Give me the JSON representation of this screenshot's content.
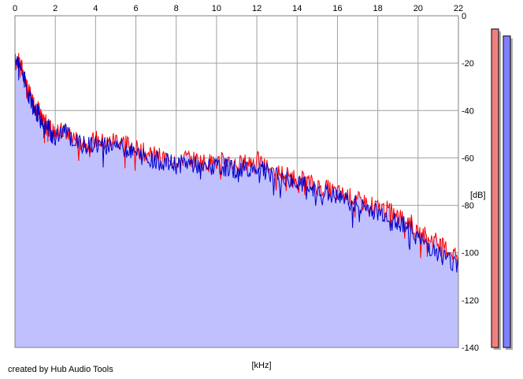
{
  "credit": "created by Hub Audio Tools",
  "chart_data": {
    "type": "line",
    "xlabel": "[kHz]",
    "ylabel": "[dB]",
    "xlim": [
      0,
      22
    ],
    "ylim": [
      -140,
      0
    ],
    "x_ticks": [
      0,
      2,
      4,
      6,
      8,
      10,
      12,
      14,
      16,
      18,
      20,
      22
    ],
    "y_ticks": [
      0,
      -20,
      -40,
      -60,
      -80,
      -100,
      -120,
      -140
    ],
    "grid": true,
    "colors": {
      "left_channel": "#ff0000",
      "right_channel": "#0000cc",
      "fill": "#c0c0ff",
      "grid": "#a0a0a0",
      "level_left": "#f08080",
      "level_right": "#8080ff"
    },
    "series": [
      {
        "x": [
          0,
          0.2,
          0.4,
          0.6,
          0.8,
          1,
          1.2,
          1.4,
          1.6,
          1.8,
          2,
          2.5,
          3,
          3.5,
          4,
          4.5,
          5,
          5.5,
          6,
          6.5,
          7,
          7.5,
          8,
          8.5,
          9,
          9.5,
          10,
          10.5,
          11,
          11.5,
          12,
          12.5,
          13,
          13.5,
          14,
          14.5,
          15,
          15.5,
          16,
          16.5,
          17,
          17.5,
          18,
          18.5,
          19,
          19.5,
          20,
          20.5,
          21,
          21.5,
          22
        ],
        "values": [
          -20,
          -18,
          -24,
          -30,
          -35,
          -38,
          -40,
          -46,
          -44,
          -48,
          -50,
          -48,
          -52,
          -54,
          -52,
          -54,
          -52,
          -54,
          -56,
          -58,
          -59,
          -60,
          -61,
          -60,
          -61,
          -62,
          -62,
          -61,
          -63,
          -62,
          -61,
          -64,
          -66,
          -67,
          -69,
          -70,
          -72,
          -73,
          -75,
          -76,
          -78,
          -79,
          -81,
          -82,
          -85,
          -86,
          -91,
          -93,
          -96,
          -99,
          -101
        ]
      },
      {
        "x": [
          0,
          0.2,
          0.4,
          0.6,
          0.8,
          1,
          1.2,
          1.4,
          1.6,
          1.8,
          2,
          2.5,
          3,
          3.5,
          4,
          4.5,
          5,
          5.5,
          6,
          6.5,
          7,
          7.5,
          8,
          8.5,
          9,
          9.5,
          10,
          10.5,
          11,
          11.5,
          12,
          12.5,
          13,
          13.5,
          14,
          14.5,
          15,
          15.5,
          16,
          16.5,
          17,
          17.5,
          18,
          18.5,
          19,
          19.5,
          20,
          20.5,
          21,
          21.5,
          22
        ],
        "values": [
          -20,
          -19,
          -25,
          -31,
          -36,
          -40,
          -42,
          -48,
          -46,
          -50,
          -51,
          -49,
          -53,
          -55,
          -54,
          -55,
          -54,
          -56,
          -58,
          -60,
          -61,
          -62,
          -63,
          -62,
          -63,
          -64,
          -64,
          -64,
          -65,
          -64,
          -64,
          -66,
          -68,
          -69,
          -71,
          -72,
          -74,
          -75,
          -77,
          -78,
          -80,
          -81,
          -83,
          -84,
          -87,
          -88,
          -94,
          -97,
          -100,
          -103,
          -105
        ]
      }
    ],
    "levels": [
      {
        "value": -3
      },
      {
        "value": -6
      }
    ]
  }
}
